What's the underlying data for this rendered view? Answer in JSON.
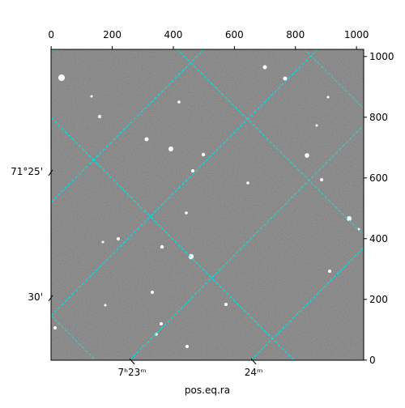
{
  "chart_data": {
    "type": "image",
    "xlabel": "pos.eq.ra",
    "xlim": [
      -0.5,
      1023.5
    ],
    "ylim": [
      -0.5,
      1023.5
    ],
    "xticks": [
      0,
      200,
      400,
      600,
      800,
      1000
    ],
    "yticks": [
      0,
      200,
      400,
      600,
      800,
      1000
    ],
    "world_xticks": [
      {
        "value": 265,
        "label": "7ʰ23ᵐ"
      },
      {
        "value": 663,
        "label": "24ᵐ"
      }
    ],
    "world_yticks": [
      {
        "value": 621,
        "label": "71°25'"
      },
      {
        "value": 208,
        "label": "30'"
      }
    ],
    "grid_color": "#00e5e5"
  }
}
